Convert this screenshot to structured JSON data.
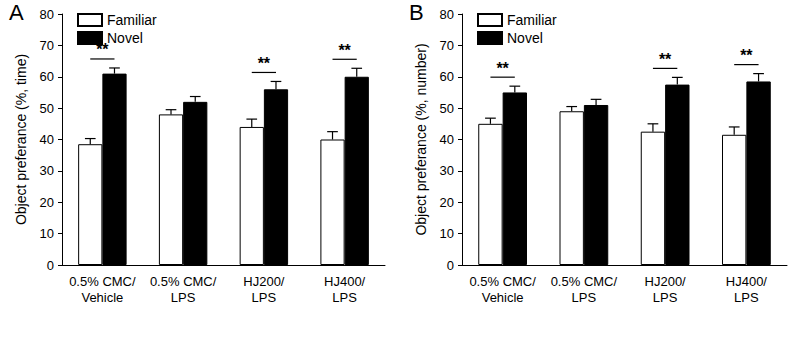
{
  "chart_data": [
    {
      "type": "bar",
      "title": "A",
      "categories": [
        "0.5% CMC/\nVehicle",
        "0.5% CMC/\nLPS",
        "HJ200/\nLPS",
        "HJ400/\nLPS"
      ],
      "series": [
        {
          "name": "Familiar",
          "color": "#ffffff",
          "values": [
            38.5,
            48,
            44,
            40
          ],
          "errors": [
            1.8,
            1.5,
            2.5,
            2.5
          ]
        },
        {
          "name": "Novel",
          "color": "#000000",
          "values": [
            61,
            52,
            56,
            60
          ],
          "errors": [
            1.8,
            1.7,
            2.5,
            2.7
          ]
        }
      ],
      "y_label": "Object preferance (%, time)",
      "ylim": [
        0,
        80
      ],
      "yticks": [
        0,
        10,
        20,
        30,
        40,
        50,
        60,
        70,
        80
      ],
      "legend": "upper left",
      "significance": [
        {
          "category": "0.5% CMC/\nVehicle",
          "label": "**"
        },
        {
          "category": "HJ200/\nLPS",
          "label": "**"
        },
        {
          "category": "HJ400/\nLPS",
          "label": "**"
        }
      ]
    },
    {
      "type": "bar",
      "title": "B",
      "categories": [
        "0.5% CMC/\nVehicle",
        "0.5% CMC/\nLPS",
        "HJ200/\nLPS",
        "HJ400/\nLPS"
      ],
      "series": [
        {
          "name": "Familiar",
          "color": "#ffffff",
          "values": [
            45,
            49,
            42.5,
            41.5
          ],
          "errors": [
            1.8,
            1.5,
            2.5,
            2.5
          ]
        },
        {
          "name": "Novel",
          "color": "#000000",
          "values": [
            55,
            51,
            57.5,
            58.5
          ],
          "errors": [
            2,
            1.8,
            2.3,
            2.5
          ]
        }
      ],
      "y_label": "Object preferance (%, number)",
      "ylim": [
        0,
        80
      ],
      "yticks": [
        0,
        10,
        20,
        30,
        40,
        50,
        60,
        70,
        80
      ],
      "legend": "upper left",
      "significance": [
        {
          "category": "0.5% CMC/\nVehicle",
          "label": "**"
        },
        {
          "category": "HJ200/\nLPS",
          "label": "**"
        },
        {
          "category": "HJ400/\nLPS",
          "label": "**"
        }
      ]
    }
  ]
}
